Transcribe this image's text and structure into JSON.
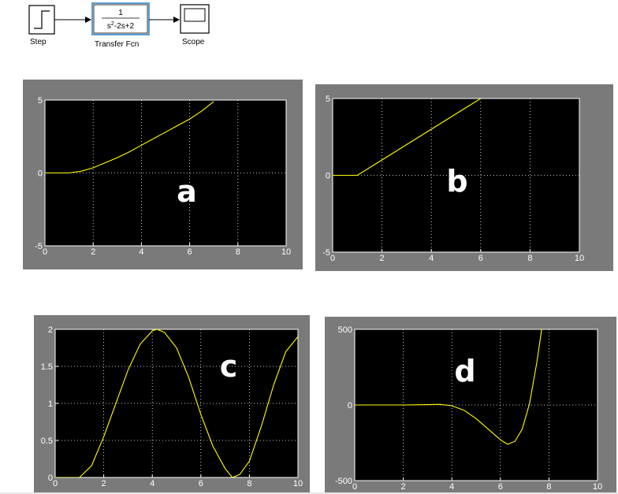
{
  "diagram": {
    "step_label": "Step",
    "tf_label": "Transfer Fcn",
    "tf_numerator": "1",
    "tf_denominator": "s2-2s+2",
    "scope_label": "Scope"
  },
  "chart_data": [
    {
      "type": "line",
      "annotation": "a",
      "xlim": [
        0,
        10
      ],
      "ylim": [
        -5,
        5
      ],
      "xticks": [
        "0",
        "2",
        "4",
        "6",
        "8",
        "10"
      ],
      "yticks": [
        "5",
        "0",
        "-5"
      ],
      "ytick_values": [
        5,
        0,
        -5
      ],
      "grid": true,
      "series": [
        {
          "color": "#ffff00",
          "x": [
            0,
            1,
            1.5,
            2,
            2.5,
            3,
            3.5,
            4,
            4.5,
            5,
            5.5,
            6,
            6.5,
            7
          ],
          "y": [
            0,
            0,
            0.12,
            0.35,
            0.7,
            1.05,
            1.45,
            1.9,
            2.35,
            2.8,
            3.25,
            3.7,
            4.25,
            4.9
          ]
        }
      ]
    },
    {
      "type": "line",
      "annotation": "b",
      "xlim": [
        0,
        10
      ],
      "ylim": [
        -5,
        5
      ],
      "xticks": [
        "0",
        "2",
        "4",
        "6",
        "8",
        "10"
      ],
      "yticks": [
        "5",
        "0",
        "-5"
      ],
      "ytick_values": [
        5,
        0,
        -5
      ],
      "grid": true,
      "series": [
        {
          "color": "#ffff00",
          "x": [
            0,
            1,
            2,
            3,
            4,
            5,
            6
          ],
          "y": [
            0,
            0,
            1.0,
            2.0,
            3.0,
            4.0,
            5.0
          ]
        }
      ]
    },
    {
      "type": "line",
      "annotation": "c",
      "xlim": [
        0,
        10
      ],
      "ylim": [
        0,
        2
      ],
      "xticks": [
        "0",
        "2",
        "4",
        "6",
        "8",
        "10"
      ],
      "yticks": [
        "2",
        "1.5",
        "1",
        "0.5",
        "0"
      ],
      "ytick_values": [
        2,
        1.5,
        1,
        0.5,
        0
      ],
      "grid": true,
      "series": [
        {
          "color": "#ffff00",
          "x": [
            0,
            1,
            1.5,
            2,
            2.5,
            3,
            3.5,
            4,
            4.2,
            4.5,
            5,
            5.5,
            6,
            6.5,
            7,
            7.3,
            7.6,
            8,
            8.5,
            9,
            9.5,
            10
          ],
          "y": [
            0,
            0,
            0.16,
            0.55,
            1.0,
            1.45,
            1.8,
            1.98,
            2.0,
            1.96,
            1.75,
            1.35,
            0.85,
            0.42,
            0.12,
            0.0,
            0.04,
            0.22,
            0.7,
            1.25,
            1.7,
            1.9
          ]
        }
      ]
    },
    {
      "type": "line",
      "annotation": "d",
      "xlim": [
        0,
        10
      ],
      "ylim": [
        -500,
        500
      ],
      "xticks": [
        "0",
        "2",
        "4",
        "6",
        "8",
        "10"
      ],
      "yticks": [
        "500",
        "0",
        "-500"
      ],
      "ytick_values": [
        500,
        0,
        -500
      ],
      "grid": true,
      "series": [
        {
          "color": "#ffff00",
          "x": [
            0,
            1,
            2,
            3,
            3.5,
            4,
            4.5,
            5,
            5.5,
            6,
            6.3,
            6.6,
            6.9,
            7.2,
            7.5,
            7.7
          ],
          "y": [
            0,
            0,
            0,
            2,
            4,
            -5,
            -35,
            -90,
            -160,
            -230,
            -260,
            -240,
            -160,
            10,
            280,
            500
          ]
        }
      ]
    }
  ]
}
